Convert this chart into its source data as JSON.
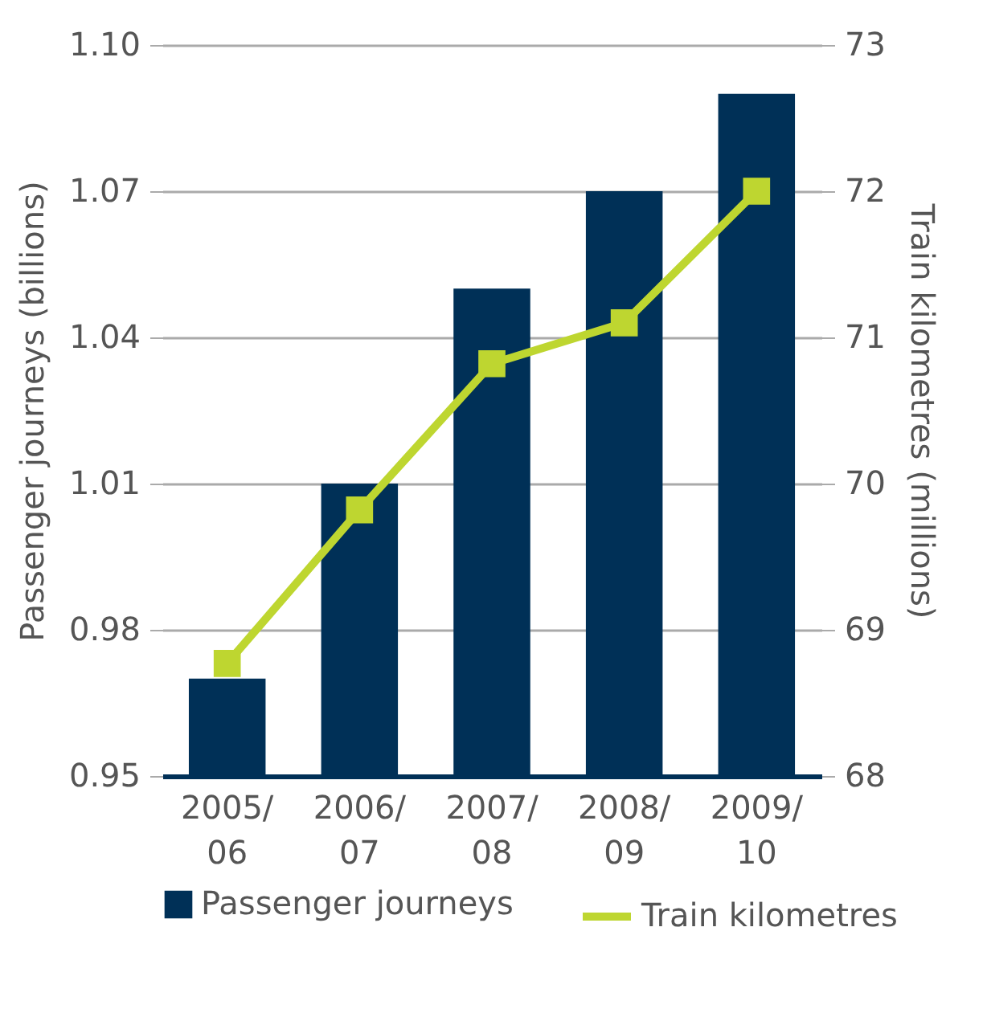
{
  "chart_data": {
    "type": "bar",
    "categories": [
      "2005/06",
      "2006/07",
      "2007/08",
      "2008/09",
      "2009/10"
    ],
    "series": [
      {
        "name": "Passenger journeys",
        "type": "bar",
        "color": "#003057",
        "values": [
          0.97,
          1.01,
          1.05,
          1.07,
          1.09
        ]
      },
      {
        "name": "Train kilometres",
        "type": "line",
        "axis": "y2",
        "color": "#bed630",
        "values": [
          68.77,
          69.82,
          70.82,
          71.1,
          72.0
        ]
      }
    ],
    "ylabel": "Passenger journeys (billions)",
    "y2label": "Train kilometres (millions)",
    "ylim": [
      0.95,
      1.1
    ],
    "yticks": [
      {
        "value": 0.95,
        "label": "0.95"
      },
      {
        "value": 0.98,
        "label": "0.98"
      },
      {
        "value": 1.01,
        "label": "1.01"
      },
      {
        "value": 1.04,
        "label": "1.04"
      },
      {
        "value": 1.07,
        "label": "1.07"
      },
      {
        "value": 1.1,
        "label": "1.10"
      }
    ],
    "y2lim": [
      68,
      73
    ],
    "y2ticks": [
      68,
      69,
      70,
      71,
      72,
      73
    ],
    "grid": "y",
    "legend": "bottom",
    "marker": "square",
    "line_style": "solid"
  }
}
